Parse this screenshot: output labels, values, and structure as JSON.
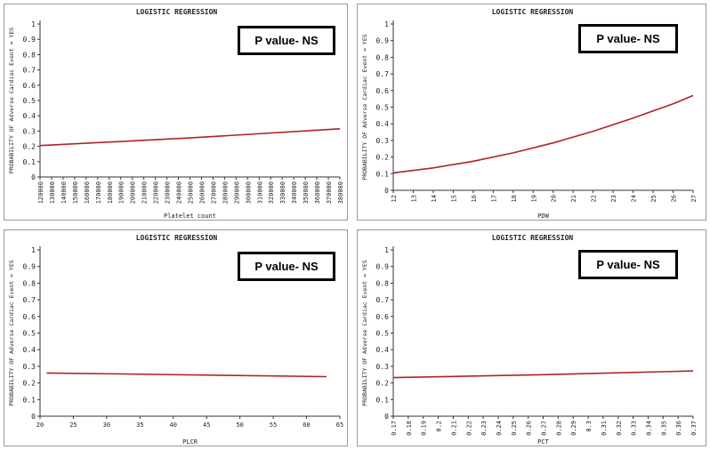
{
  "chart_data": [
    {
      "type": "line",
      "title": "LOGISTIC REGRESSION",
      "xlabel": "Platelet count",
      "ylabel": "PROBABILITY OF Adverse Cardiac Event = YES",
      "annotation": "P value- NS",
      "ylim": [
        0,
        1
      ],
      "yticks": [
        "0",
        "0.1",
        "0.2",
        "0.3",
        "0.4",
        "0.5",
        "0.6",
        "0.7",
        "0.8",
        "0.9",
        "1"
      ],
      "xticks": [
        "120000",
        "130000",
        "140000",
        "150000",
        "160000",
        "170000",
        "180000",
        "190000",
        "200000",
        "210000",
        "220000",
        "230000",
        "240000",
        "250000",
        "260000",
        "270000",
        "280000",
        "290000",
        "300000",
        "310000",
        "320000",
        "330000",
        "340000",
        "350000",
        "360000",
        "370000",
        "380000"
      ],
      "xtick_rotate": true,
      "line_color": "#b22222",
      "series": [
        {
          "x": [
            120000,
            250000,
            380000
          ],
          "y": [
            0.205,
            0.255,
            0.315
          ]
        }
      ]
    },
    {
      "type": "line",
      "title": "LOGISTIC REGRESSION",
      "xlabel": "PDW",
      "ylabel": "PROBABILITY OF Adverse Cardiac Event = YES",
      "annotation": "P value- NS",
      "ylim": [
        0,
        1
      ],
      "yticks": [
        "0",
        "0.1",
        "0.2",
        "0.3",
        "0.4",
        "0.5",
        "0.6",
        "0.7",
        "0.8",
        "0.9",
        "1"
      ],
      "xticks": [
        "12",
        "13",
        "14",
        "15",
        "16",
        "17",
        "18",
        "19",
        "20",
        "21",
        "22",
        "23",
        "24",
        "25",
        "26",
        "27"
      ],
      "xtick_rotate": true,
      "line_color": "#b22222",
      "series": [
        {
          "x": [
            12,
            14,
            16,
            18,
            20,
            22,
            24,
            26,
            27
          ],
          "y": [
            0.105,
            0.135,
            0.175,
            0.225,
            0.285,
            0.355,
            0.435,
            0.52,
            0.57
          ]
        }
      ]
    },
    {
      "type": "line",
      "title": "LOGISTIC REGRESSION",
      "xlabel": "PLCR",
      "ylabel": "PROBABILITY OF Adverse Cardiac Event = YES",
      "annotation": "P value- NS",
      "ylim": [
        0,
        1
      ],
      "yticks": [
        "0",
        "0.1",
        "0.2",
        "0.3",
        "0.4",
        "0.5",
        "0.6",
        "0.7",
        "0.8",
        "0.9",
        "1"
      ],
      "xticks": [
        "20",
        "25",
        "30",
        "35",
        "40",
        "45",
        "50",
        "55",
        "60",
        "65"
      ],
      "xtick_rotate": false,
      "line_color": "#b22222",
      "series": [
        {
          "x": [
            21,
            63
          ],
          "y": [
            0.26,
            0.238
          ]
        }
      ]
    },
    {
      "type": "line",
      "title": "LOGISTIC REGRESSION",
      "xlabel": "PCT",
      "ylabel": "PROBABILITY OF Adverse Cardiac Event = YES",
      "annotation": "P value- NS",
      "ylim": [
        0,
        1
      ],
      "yticks": [
        "0",
        "0.1",
        "0.2",
        "0.3",
        "0.4",
        "0.5",
        "0.6",
        "0.7",
        "0.8",
        "0.9",
        "1"
      ],
      "xticks": [
        "0.17",
        "0.18",
        "0.19",
        "0.2",
        "0.21",
        "0.22",
        "0.23",
        "0.24",
        "0.25",
        "0.26",
        "0.27",
        "0.28",
        "0.29",
        "0.3",
        "0.31",
        "0.32",
        "0.33",
        "0.34",
        "0.35",
        "0.36",
        "0.37"
      ],
      "xtick_rotate": true,
      "line_color": "#b22222",
      "series": [
        {
          "x": [
            0.17,
            0.27,
            0.37
          ],
          "y": [
            0.232,
            0.25,
            0.272
          ]
        }
      ]
    }
  ]
}
